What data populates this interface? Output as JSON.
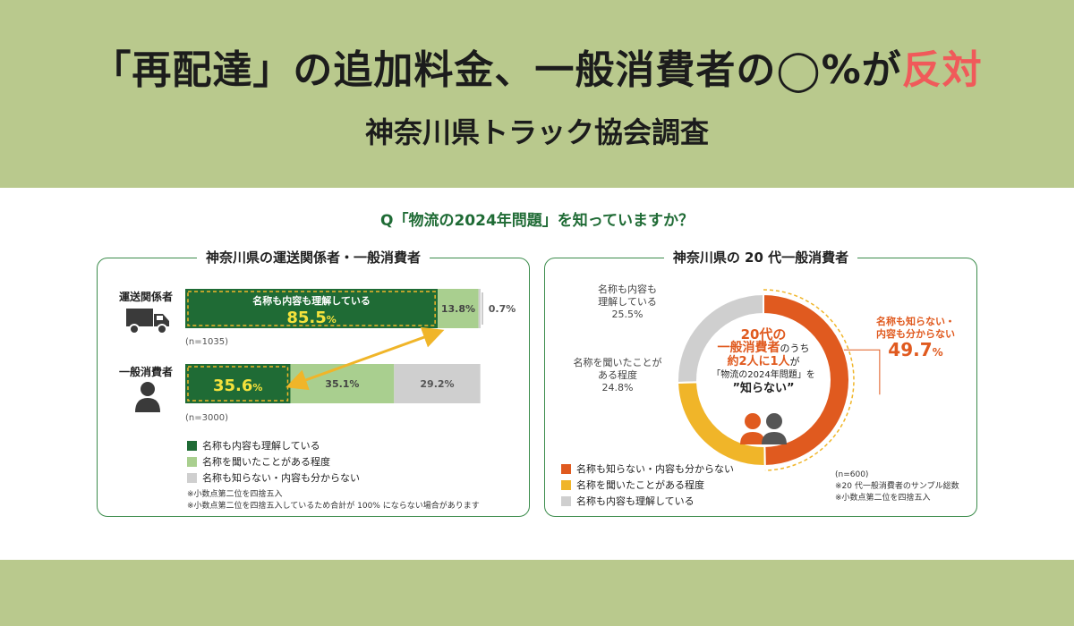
{
  "header": {
    "headline_pre": "「再配達」の追加料金、一般消費者の◯%が",
    "headline_accent": "反対",
    "subtitle": "神奈川県トラック協会調査"
  },
  "question": "Q「物流の2024年問題」を知っていますか？",
  "colors": {
    "dark_green": "#1f6b35",
    "light_green": "#a9cf8f",
    "gray": "#cfcfcf",
    "orange_red": "#e05a1f",
    "yellow": "#f0b529",
    "yellow_text": "#f4e23c",
    "accent_red": "#f05a5a"
  },
  "icons": [
    "truck-icon",
    "person-icon",
    "two-people-icon"
  ],
  "left_panel": {
    "title": "神奈川県の運送関係者・一般消費者",
    "rows": [
      {
        "label": "運送関係者",
        "n": "(n=1035)",
        "inner_caption": "名称も内容も理解している",
        "big_value": "85.5",
        "pct_sign": "%",
        "mid_label": "13.8%",
        "right_label": "0.7%"
      },
      {
        "label": "一般消費者",
        "n": "(n=3000)",
        "big_value": "35.6",
        "pct_sign": "%",
        "mid_label": "35.1%",
        "right_label": "29.2%"
      }
    ],
    "legend": [
      "名称も内容も理解している",
      "名称を聞いたことがある程度",
      "名称も知らない・内容も分からない"
    ],
    "notes": [
      "※小数点第二位を四捨五入",
      "※小数点第二位を四捨五入しているため合計が 100% にならない場合があります"
    ]
  },
  "right_panel": {
    "title": "神奈川県の 20 代一般消費者",
    "labels": {
      "understand_1": "名称も内容も",
      "understand_2": "理解している",
      "understand_val": "25.5%",
      "heard_1": "名称を聞いたことが",
      "heard_2": "ある程度",
      "heard_val": "24.8%",
      "unknown_1": "名称も知らない・",
      "unknown_2": "内容も分からない",
      "unknown_val": "49.7",
      "unknown_pct": "%"
    },
    "center": {
      "line1": "20代の",
      "line2a": "一般消費者",
      "line2b": "のうち",
      "line3a": "約2人に1人",
      "line3b": "が",
      "line4": "「物流の2024年問題」を",
      "line5": "”知らない”"
    },
    "legend": [
      "名称も知らない・内容も分からない",
      "名称を聞いたことがある程度",
      "名称も内容も理解している"
    ],
    "notes": [
      "(n=600)",
      "※20 代一般消費者のサンプル総数",
      "※小数点第二位を四捨五入"
    ]
  },
  "chart_data": [
    {
      "type": "bar",
      "orientation": "horizontal",
      "stacked": true,
      "title": "神奈川県の運送関係者・一般消費者",
      "categories": [
        "運送関係者",
        "一般消費者"
      ],
      "series": [
        {
          "name": "名称も内容も理解している",
          "values": [
            85.5,
            35.6
          ]
        },
        {
          "name": "名称を聞いたことがある程度",
          "values": [
            13.8,
            35.1
          ]
        },
        {
          "name": "名称も知らない・内容も分からない",
          "values": [
            0.7,
            29.2
          ]
        }
      ],
      "xlim": [
        0,
        100
      ]
    },
    {
      "type": "pie",
      "donut": true,
      "title": "神奈川県の 20 代一般消費者",
      "categories": [
        "名称も知らない・内容も分からない",
        "名称を聞いたことがある程度",
        "名称も内容も理解している"
      ],
      "values": [
        49.7,
        24.8,
        25.5
      ]
    }
  ]
}
